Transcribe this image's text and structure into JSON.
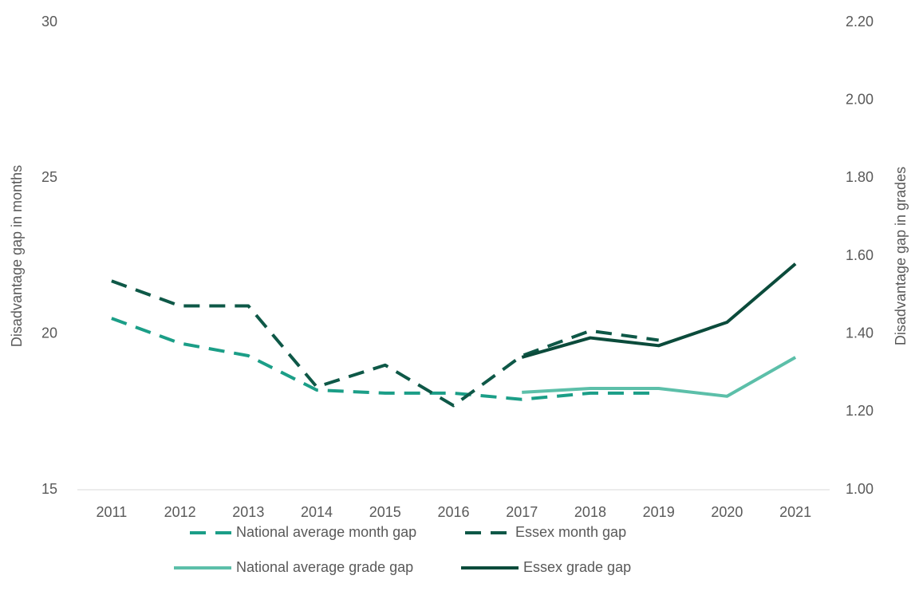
{
  "chart_data": {
    "type": "line",
    "categories": [
      "2011",
      "2012",
      "2013",
      "2014",
      "2015",
      "2016",
      "2017",
      "2018",
      "2019",
      "2020",
      "2021"
    ],
    "y_label": "Disadvantage gap in months",
    "y2_label": "Disadvantage gap in grades",
    "ylim": [
      15,
      30
    ],
    "yticks": [
      15,
      20,
      25,
      30
    ],
    "y2lim": [
      1.0,
      2.2
    ],
    "y2ticks": [
      {
        "value": 1.0,
        "label": "1.00"
      },
      {
        "value": 1.2,
        "label": "1.20"
      },
      {
        "value": 1.4,
        "label": "1.40"
      },
      {
        "value": 1.6,
        "label": "1.60"
      },
      {
        "value": 1.8,
        "label": "1.80"
      },
      {
        "value": 2.0,
        "label": "2.00"
      },
      {
        "value": 2.2,
        "label": "2.20"
      }
    ],
    "series": [
      {
        "name": "National average month gap",
        "color": "#1b9e87",
        "line_style": "dashed",
        "values": [
          20.5,
          19.7,
          19.3,
          18.2,
          18.1,
          18.1,
          17.9,
          18.1,
          18.1,
          null,
          null
        ]
      },
      {
        "name": "Essex month gap",
        "color": "#0e5847",
        "line_style": "dashed",
        "values": [
          21.7,
          20.9,
          20.9,
          18.3,
          19.0,
          17.7,
          19.3,
          20.1,
          19.8,
          null,
          null
        ]
      },
      {
        "name": "National average grade gap",
        "color": "#5cbfa9",
        "line_style": "solid",
        "axis": "y2",
        "values": [
          null,
          null,
          null,
          null,
          null,
          null,
          1.25,
          1.26,
          1.26,
          1.24,
          1.34
        ]
      },
      {
        "name": "Essex grade gap",
        "color": "#0b4b3b",
        "line_style": "solid",
        "axis": "y2",
        "values": [
          null,
          null,
          null,
          null,
          null,
          null,
          1.34,
          1.39,
          1.37,
          1.43,
          1.58
        ]
      }
    ]
  }
}
